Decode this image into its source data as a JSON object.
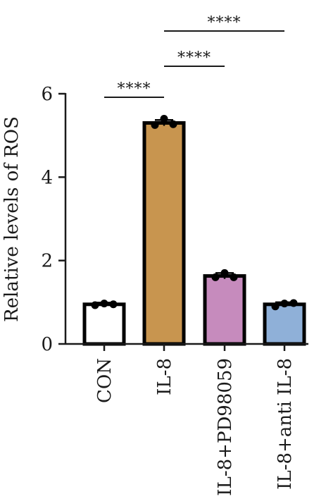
{
  "chart_data": {
    "type": "bar",
    "ylabel": "Relative levels of ROS",
    "ylim": [
      0,
      6
    ],
    "yticks": [
      0,
      2,
      4,
      6
    ],
    "error_style": "error bars with individual data points",
    "categories": [
      "CON",
      "IL-8",
      "IL-8+PD98059",
      "IL-8+anti IL-8"
    ],
    "values": [
      0.95,
      5.3,
      1.63,
      0.95
    ],
    "errors": [
      0.04,
      0.07,
      0.07,
      0.05
    ],
    "points": [
      [
        0.93,
        0.97,
        0.95
      ],
      [
        5.25,
        5.4,
        5.27
      ],
      [
        1.6,
        1.7,
        1.6
      ],
      [
        0.9,
        0.97,
        0.98
      ]
    ],
    "colors": [
      "#ffffff",
      "#c8954f",
      "#c68bbd",
      "#8fb0d8"
    ],
    "significance": [
      {
        "from": 0,
        "to": 1,
        "label": "****"
      },
      {
        "from": 1,
        "to": 2,
        "label": "****"
      },
      {
        "from": 1,
        "to": 3,
        "label": "****"
      }
    ]
  }
}
